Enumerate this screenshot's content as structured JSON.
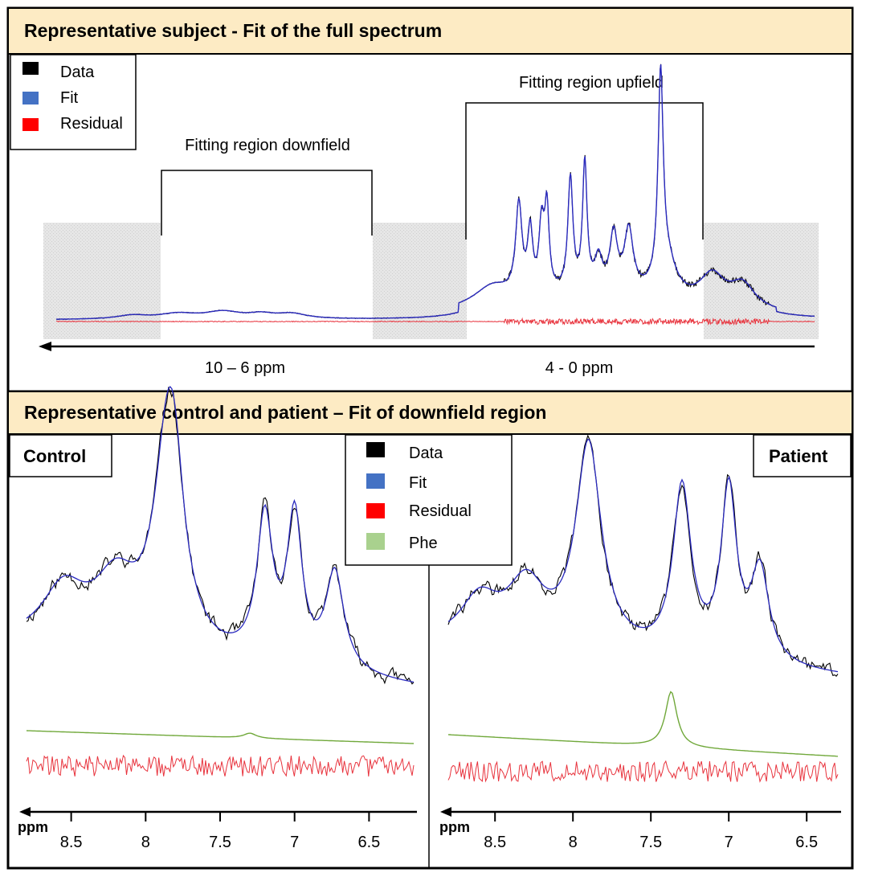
{
  "top_panel": {
    "title": "Representative subject - Fit of the full spectrum",
    "legend": [
      {
        "label": "Data",
        "color": "#000000"
      },
      {
        "label": "Fit",
        "color": "#4472c4"
      },
      {
        "label": "Residual",
        "color": "#ff0000"
      }
    ],
    "region_downfield_label": "Fitting region downfield",
    "region_upfield_label": "Fitting region upfield",
    "axis_label_left": "10 – 6 ppm",
    "axis_label_right": "4 - 0 ppm"
  },
  "bottom_panel": {
    "title": "Representative control and patient – Fit of downfield region",
    "control_label": "Control",
    "patient_label": "Patient",
    "legend": [
      {
        "label": "Data",
        "color": "#000000"
      },
      {
        "label": "Fit",
        "color": "#4472c4"
      },
      {
        "label": "Residual",
        "color": "#ff0000"
      },
      {
        "label": "Phe",
        "color": "#a9d18e"
      }
    ],
    "axis_unit": "ppm"
  },
  "colors": {
    "header_bg": "#fdebc4",
    "data_line": "#000000",
    "fit_line": "#2b2bbf",
    "residual_line": "#e8323c",
    "phe_line": "#70a83a",
    "shade": "#e3e3e3"
  },
  "chart_data": [
    {
      "type": "line",
      "title": "Representative subject - Fit of the full spectrum",
      "xlabel": "ppm",
      "xlim": [
        10,
        0
      ],
      "ylim": [
        -0.05,
        1.05
      ],
      "fitting_regions": [
        {
          "name": "Fitting region downfield",
          "ppm": [
            10,
            6
          ]
        },
        {
          "name": "Fitting region upfield",
          "ppm": [
            4,
            0
          ]
        }
      ],
      "baseline_level": 0.02,
      "peaks": [
        {
          "ppm": 9.0,
          "height": 0.018,
          "width": 0.25
        },
        {
          "ppm": 8.4,
          "height": 0.025,
          "width": 0.3
        },
        {
          "ppm": 7.8,
          "height": 0.035,
          "width": 0.3
        },
        {
          "ppm": 7.3,
          "height": 0.02,
          "width": 0.2
        },
        {
          "ppm": 6.9,
          "height": 0.025,
          "width": 0.25
        },
        {
          "ppm": 4.25,
          "height": 0.1,
          "width": 0.3
        },
        {
          "ppm": 3.9,
          "height": 0.44,
          "width": 0.05
        },
        {
          "ppm": 3.75,
          "height": 0.3,
          "width": 0.04
        },
        {
          "ppm": 3.6,
          "height": 0.32,
          "width": 0.04
        },
        {
          "ppm": 3.53,
          "height": 0.4,
          "width": 0.035
        },
        {
          "ppm": 3.22,
          "height": 0.55,
          "width": 0.04
        },
        {
          "ppm": 3.03,
          "height": 0.62,
          "width": 0.035
        },
        {
          "ppm": 2.85,
          "height": 0.15,
          "width": 0.06
        },
        {
          "ppm": 2.65,
          "height": 0.27,
          "width": 0.06
        },
        {
          "ppm": 2.45,
          "height": 0.3,
          "width": 0.07
        },
        {
          "ppm": 2.03,
          "height": 1.0,
          "width": 0.04
        },
        {
          "ppm": 1.95,
          "height": 0.18,
          "width": 0.15
        },
        {
          "ppm": 1.35,
          "height": 0.15,
          "width": 0.2
        },
        {
          "ppm": 0.95,
          "height": 0.12,
          "width": 0.2
        }
      ],
      "broad_hump": {
        "center": 2.9,
        "height": 0.12,
        "width": 1.4
      },
      "series": [
        {
          "name": "Data",
          "color": "#000000"
        },
        {
          "name": "Fit",
          "color": "#4472c4"
        },
        {
          "name": "Residual",
          "color": "#ff0000"
        }
      ]
    },
    {
      "type": "line",
      "title": "Control",
      "xlabel": "ppm",
      "xlim": [
        8.8,
        6.2
      ],
      "xticks": [
        8.5,
        8,
        7.5,
        7,
        6.5
      ],
      "xtick_labels": [
        "8.5",
        "8",
        "7.5",
        "7",
        "6.5"
      ],
      "ylim": [
        -0.35,
        1.05
      ],
      "fit_peaks": [
        {
          "ppm": 8.55,
          "height": 0.22,
          "width": 0.18
        },
        {
          "ppm": 8.2,
          "height": 0.26,
          "width": 0.18
        },
        {
          "ppm": 7.85,
          "height": 0.86,
          "width": 0.11
        },
        {
          "ppm": 7.8,
          "height": 0.25,
          "width": 0.07
        },
        {
          "ppm": 7.2,
          "height": 0.58,
          "width": 0.065
        },
        {
          "ppm": 7.0,
          "height": 0.6,
          "width": 0.06
        },
        {
          "ppm": 6.73,
          "height": 0.4,
          "width": 0.075
        }
      ],
      "phe_peak": {
        "ppm": 7.3,
        "height": 0.02,
        "width": 0.05
      },
      "noise_seed": 11,
      "series": [
        {
          "name": "Data",
          "color": "#000000"
        },
        {
          "name": "Fit",
          "color": "#4472c4"
        },
        {
          "name": "Residual",
          "color": "#ff0000"
        },
        {
          "name": "Phe",
          "color": "#a9d18e"
        }
      ]
    },
    {
      "type": "line",
      "title": "Patient",
      "xlabel": "ppm",
      "xlim": [
        8.8,
        6.3
      ],
      "xticks": [
        8.5,
        8,
        7.5,
        7,
        6.5
      ],
      "xtick_labels": [
        "8.5",
        "8",
        "7.5",
        "7",
        "6.5"
      ],
      "ylim": [
        -0.35,
        1.05
      ],
      "fit_peaks": [
        {
          "ppm": 8.6,
          "height": 0.18,
          "width": 0.15
        },
        {
          "ppm": 8.3,
          "height": 0.25,
          "width": 0.15
        },
        {
          "ppm": 7.9,
          "height": 0.85,
          "width": 0.1
        },
        {
          "ppm": 7.3,
          "height": 0.7,
          "width": 0.07
        },
        {
          "ppm": 7.0,
          "height": 0.7,
          "width": 0.06
        },
        {
          "ppm": 6.8,
          "height": 0.38,
          "width": 0.07
        }
      ],
      "phe_peak": {
        "ppm": 7.37,
        "height": 0.23,
        "width": 0.045
      },
      "noise_seed": 29,
      "series": [
        {
          "name": "Data",
          "color": "#000000"
        },
        {
          "name": "Fit",
          "color": "#4472c4"
        },
        {
          "name": "Residual",
          "color": "#ff0000"
        },
        {
          "name": "Phe",
          "color": "#a9d18e"
        }
      ]
    }
  ]
}
